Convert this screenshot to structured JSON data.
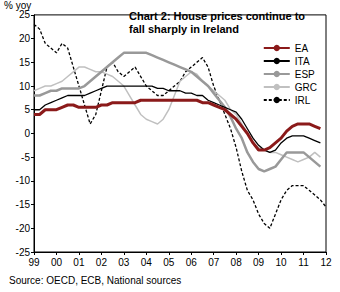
{
  "chart_data": {
    "type": "line",
    "title": "Chart 2: House prices continue to fall sharply in Ireland",
    "y_label": "% yoy",
    "source": "Source: OECD, ECB, National sources",
    "categories": [
      "99",
      null,
      null,
      null,
      "00",
      null,
      null,
      null,
      "01",
      null,
      null,
      null,
      "02",
      null,
      null,
      null,
      "03",
      null,
      null,
      null,
      "04",
      null,
      null,
      null,
      "05",
      null,
      null,
      null,
      "06",
      null,
      null,
      null,
      "07",
      null,
      null,
      null,
      "08",
      null,
      null,
      null,
      "09",
      null,
      null,
      null,
      "10",
      null,
      null,
      null,
      "11",
      null,
      null,
      null,
      "12"
    ],
    "series": [
      {
        "name": "EA",
        "color": "#8b1a1a",
        "line_style": "solid",
        "values": [
          4,
          4,
          5,
          5,
          5,
          5.5,
          6,
          6,
          5.5,
          5.5,
          5.5,
          5.5,
          6,
          6,
          6.5,
          6.5,
          6.5,
          6.5,
          6.5,
          7,
          7,
          7,
          7,
          7,
          7,
          7,
          7,
          7,
          7,
          7,
          6.5,
          6.5,
          6,
          5.5,
          5,
          4,
          3,
          1.5,
          0,
          -2,
          -3.5,
          -3.5,
          -3,
          -2,
          -1,
          0.5,
          1.5,
          2,
          2,
          2,
          1.5,
          1,
          null
        ]
      },
      {
        "name": "ITA",
        "color": "#000000",
        "line_style": "solid",
        "values": [
          5,
          5,
          6,
          6.5,
          7,
          7.5,
          8,
          8,
          8,
          8,
          8.5,
          9,
          9.5,
          10,
          10,
          10,
          10,
          10,
          10,
          10,
          10,
          10,
          9.5,
          9.5,
          9,
          9,
          9,
          8.5,
          8.5,
          8,
          8,
          7,
          6.5,
          6,
          5.5,
          5,
          4.5,
          3,
          1,
          -1,
          -2.5,
          -3.5,
          -4,
          -3.5,
          -2,
          -1,
          -0.5,
          -0.5,
          -0.5,
          -1,
          -1.5,
          -2,
          null
        ]
      },
      {
        "name": "ESP",
        "color": "#999999",
        "line_style": "solid",
        "values": [
          8,
          8,
          8.5,
          9,
          9,
          9.5,
          9.5,
          9.5,
          9.5,
          10,
          11,
          12,
          13,
          14,
          15,
          16,
          17,
          17,
          17,
          17,
          17,
          16.5,
          16,
          15.5,
          15,
          14.5,
          14,
          13.5,
          13,
          12,
          11,
          10,
          8.5,
          7,
          5.5,
          3.5,
          1,
          -1,
          -4,
          -6,
          -7.5,
          -8,
          -7.5,
          -7,
          -5.5,
          -4,
          -4,
          -4,
          -4,
          -5,
          -6,
          -7,
          null
        ]
      },
      {
        "name": "GRC",
        "color": "#c0c0c0",
        "line_style": "solid",
        "values": [
          9,
          9.5,
          10,
          10,
          10.5,
          11,
          12,
          13,
          14,
          14,
          13.5,
          13,
          13,
          12.5,
          12,
          11,
          10,
          8,
          6,
          4,
          3,
          2.5,
          2,
          3,
          5,
          8,
          11,
          12,
          13,
          12.5,
          11,
          10,
          9,
          8,
          7,
          5,
          4,
          2,
          0,
          -2,
          -3,
          -3.5,
          -4,
          -4,
          -4.5,
          -5,
          -5.5,
          -6,
          -5.5,
          -5,
          -4,
          -5,
          null
        ]
      },
      {
        "name": "IRL",
        "color": "#000000",
        "line_style": "dashed",
        "values": [
          23,
          22,
          19,
          18,
          17,
          19,
          18,
          14,
          10,
          6,
          2,
          4,
          9,
          14,
          15,
          13,
          12,
          13,
          14,
          12,
          10,
          9,
          8,
          8,
          9,
          10,
          11,
          13,
          14,
          15,
          16,
          14,
          10,
          7,
          4,
          1,
          -3,
          -8,
          -12,
          -14,
          -17,
          -19,
          -20,
          -17,
          -14,
          -12,
          -11,
          -11,
          -11,
          -12,
          -13,
          -14,
          -15.5
        ]
      }
    ],
    "ylim": [
      -25,
      25
    ],
    "yticks": [
      -25,
      -20,
      -15,
      -10,
      -5,
      0,
      5,
      10,
      15,
      20,
      25
    ],
    "grid": false,
    "legend": "upper right",
    "tick_labels": true
  }
}
